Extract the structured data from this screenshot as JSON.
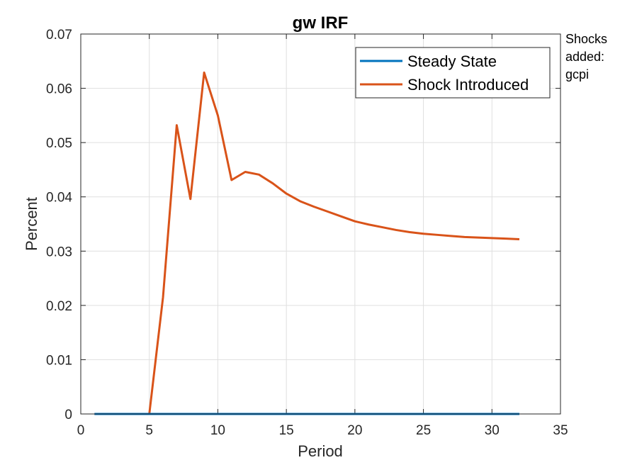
{
  "chart_data": {
    "type": "line",
    "title": "gw IRF",
    "xlabel": "Period",
    "ylabel": "Percent",
    "xlim": [
      0,
      35
    ],
    "ylim": [
      0,
      0.07
    ],
    "x_ticks": [
      "0",
      "5",
      "10",
      "15",
      "20",
      "25",
      "30",
      "35"
    ],
    "y_ticks": [
      "0",
      "0.01",
      "0.02",
      "0.03",
      "0.04",
      "0.05",
      "0.06",
      "0.07"
    ],
    "grid": true,
    "legend_position": "top-right",
    "series": [
      {
        "name": "Steady State",
        "color": "#0072BD",
        "x": [
          1,
          2,
          3,
          4,
          5,
          6,
          7,
          8,
          9,
          10,
          11,
          12,
          13,
          14,
          15,
          16,
          17,
          18,
          19,
          20,
          21,
          22,
          23,
          24,
          25,
          26,
          27,
          28,
          29,
          30,
          31,
          32
        ],
        "y": [
          0,
          0,
          0,
          0,
          0,
          0,
          0,
          0,
          0,
          0,
          0,
          0,
          0,
          0,
          0,
          0,
          0,
          0,
          0,
          0,
          0,
          0,
          0,
          0,
          0,
          0,
          0,
          0,
          0,
          0,
          0,
          0
        ]
      },
      {
        "name": "Shock Introduced",
        "color": "#D95319",
        "x": [
          1,
          2,
          3,
          4,
          5,
          6,
          7,
          8,
          9,
          10,
          11,
          12,
          13,
          14,
          15,
          16,
          17,
          18,
          19,
          20,
          21,
          22,
          23,
          24,
          25,
          26,
          27,
          28,
          29,
          30,
          31,
          32
        ],
        "y": [
          0,
          0,
          0,
          0,
          0,
          0.0215,
          0.0532,
          0.0396,
          0.0629,
          0.055,
          0.0431,
          0.0446,
          0.0441,
          0.0425,
          0.0406,
          0.0392,
          0.0382,
          0.0373,
          0.0364,
          0.0355,
          0.0349,
          0.0344,
          0.0339,
          0.0335,
          0.0332,
          0.033,
          0.0328,
          0.0326,
          0.0325,
          0.0324,
          0.0323,
          0.0322
        ]
      }
    ],
    "annotation": [
      "Shocks",
      "added:",
      "gcpi"
    ]
  }
}
